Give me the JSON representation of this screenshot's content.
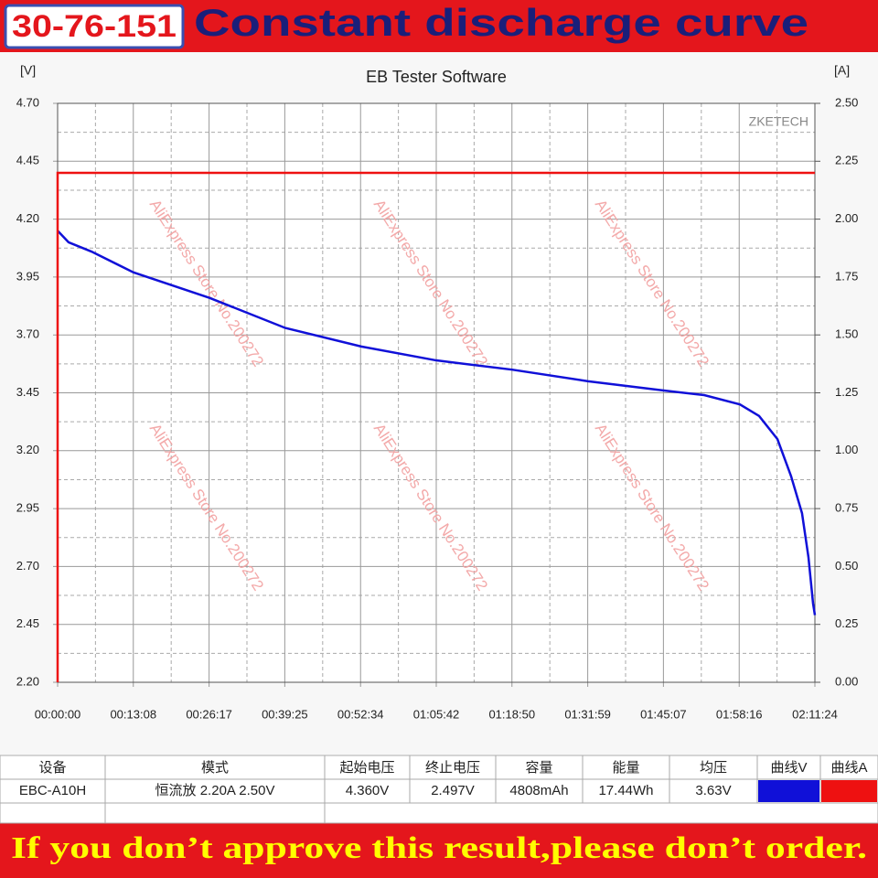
{
  "badge": "30-76-151",
  "headline": "Constant discharge curve",
  "chart_data": {
    "type": "line",
    "title": "EB Tester Software",
    "watermark": "ZKETECH",
    "y_label": "[V]",
    "y2_label": "[A]",
    "xlim": [
      0,
      7884
    ],
    "xticks": [
      {
        "value": 0,
        "label": "00:00:00"
      },
      {
        "value": 788,
        "label": "00:13:08"
      },
      {
        "value": 1577,
        "label": "00:26:17"
      },
      {
        "value": 2365,
        "label": "00:39:25"
      },
      {
        "value": 3154,
        "label": "00:52:34"
      },
      {
        "value": 3942,
        "label": "01:05:42"
      },
      {
        "value": 4730,
        "label": "01:18:50"
      },
      {
        "value": 5519,
        "label": "01:31:59"
      },
      {
        "value": 6307,
        "label": "01:45:07"
      },
      {
        "value": 7096,
        "label": "01:58:16"
      },
      {
        "value": 7884,
        "label": "02:11:24"
      }
    ],
    "ylim": [
      2.2,
      4.7
    ],
    "yticks": [
      {
        "value": 2.2,
        "label": "2.20"
      },
      2.45,
      {
        "value": 2.7,
        "label": "2.70"
      },
      2.95,
      {
        "value": 3.2,
        "label": "3.20"
      },
      3.45,
      {
        "value": 3.7,
        "label": "3.70"
      },
      3.95,
      {
        "value": 4.2,
        "label": "4.20"
      },
      4.45,
      {
        "value": 4.7,
        "label": "4.70"
      }
    ],
    "y2lim": [
      0,
      2.5
    ],
    "y2ticks": [
      {
        "value": 0,
        "label": "0.00"
      },
      0.25,
      {
        "value": 0.5,
        "label": "0.50"
      },
      0.75,
      {
        "value": 1,
        "label": "1.00"
      },
      1.25,
      {
        "value": 1.5,
        "label": "1.50"
      },
      1.75,
      {
        "value": 2,
        "label": "2.00"
      },
      2.25,
      {
        "value": 2.5,
        "label": "2.50"
      }
    ],
    "grid": true,
    "series": [
      {
        "name": "曲线V",
        "color": "#1010d8",
        "x": [
          0,
          114,
          352,
          790,
          1581,
          2371,
          3161,
          3942,
          4732,
          5523,
          6313,
          6732,
          7103,
          7303,
          7494,
          7636,
          7750,
          7817,
          7865,
          7884
        ],
        "values": [
          4.15,
          4.1,
          4.06,
          3.97,
          3.86,
          3.73,
          3.65,
          3.59,
          3.55,
          3.5,
          3.46,
          3.44,
          3.4,
          3.35,
          3.25,
          3.09,
          2.93,
          2.74,
          2.54,
          2.49
        ]
      },
      {
        "name": "曲线A",
        "color": "#ee1111",
        "axis": "y2",
        "x": [
          0,
          0,
          7884
        ],
        "values": [
          0,
          2.2,
          2.2
        ]
      }
    ],
    "annotations": [
      "AliExpress Store No.200272",
      "AliExpress Store No.200272",
      "AliExpress Store No.200272",
      "AliExpress Store No.200272",
      "AliExpress Store No.200272",
      "AliExpress Store No.200272"
    ]
  },
  "table": {
    "headers": [
      "设备",
      "模式",
      "起始电压",
      "终止电压",
      "容量",
      "能量",
      "均压",
      "曲线V",
      "曲线A"
    ],
    "rows": [
      [
        "EBC-A10H",
        "恒流放  2.20A  2.50V",
        "4.360V",
        "2.497V",
        "4808mAh",
        "17.44Wh",
        "3.63V"
      ]
    ]
  },
  "footer": "If you don’t approve this result,please don’t order."
}
